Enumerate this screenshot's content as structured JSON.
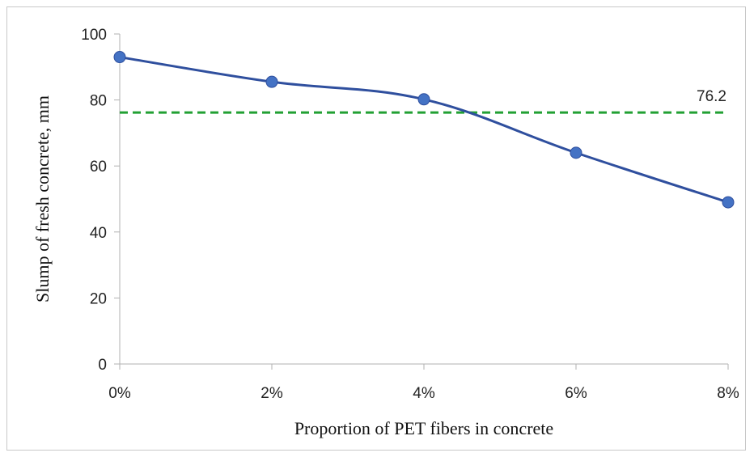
{
  "chart_data": {
    "type": "line",
    "xlabel": "Proportion of PET fibers in concrete",
    "ylabel": "Slump of fresh concrete, mm",
    "categories": [
      "0%",
      "2%",
      "4%",
      "6%",
      "8%"
    ],
    "series": [
      {
        "values": [
          93,
          85.5,
          80.2,
          64,
          49
        ],
        "color": "#4472C4",
        "line_color": "#2F4F9E"
      }
    ],
    "reference_line": {
      "value": 76.2,
      "label": "76.2",
      "color": "#22A033",
      "style": "dashed"
    },
    "yticks": [
      "0",
      "20",
      "40",
      "60",
      "80",
      "100"
    ],
    "ylim": [
      0,
      100
    ],
    "grid": false,
    "legend": "none"
  }
}
